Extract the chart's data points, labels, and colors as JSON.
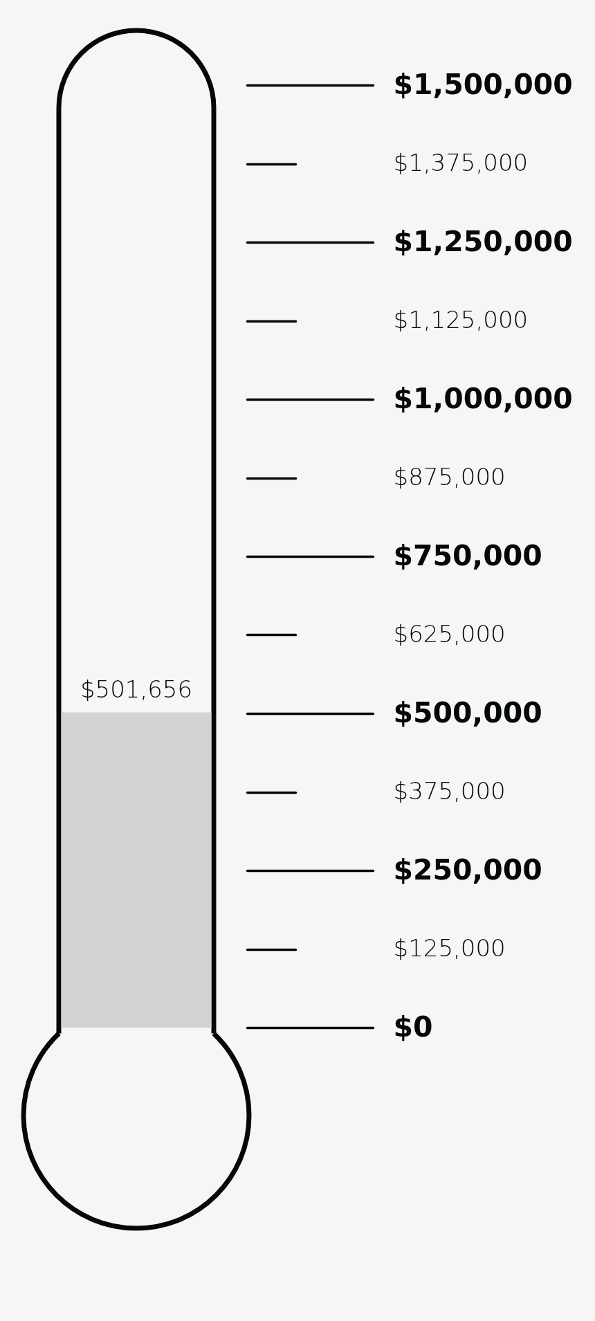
{
  "chart_data": {
    "type": "bar",
    "categories": [
      null
    ],
    "values": [
      501656
    ],
    "color": "#d3d3d3",
    "value_labels": [
      "$501,656"
    ],
    "ylim": [
      0,
      1500000
    ],
    "yticks": [
      {
        "value": 0,
        "label": "$0"
      },
      {
        "value": 125000,
        "label": "$125,000"
      },
      {
        "value": 250000,
        "label": "$250,000"
      },
      {
        "value": 375000,
        "label": "$375,000"
      },
      {
        "value": 500000,
        "label": "$500,000"
      },
      {
        "value": 625000,
        "label": "$625,000"
      },
      {
        "value": 750000,
        "label": "$750,000"
      },
      {
        "value": 875000,
        "label": "$875,000"
      },
      {
        "value": 1000000,
        "label": "$1,000,000"
      },
      {
        "value": 1125000,
        "label": "$1,125,000"
      },
      {
        "value": 1250000,
        "label": "$1,250,000"
      },
      {
        "value": 1375000,
        "label": "$1,375,000"
      },
      {
        "value": 1500000,
        "label": "$1,500,000"
      }
    ],
    "tick_labels": "y"
  }
}
